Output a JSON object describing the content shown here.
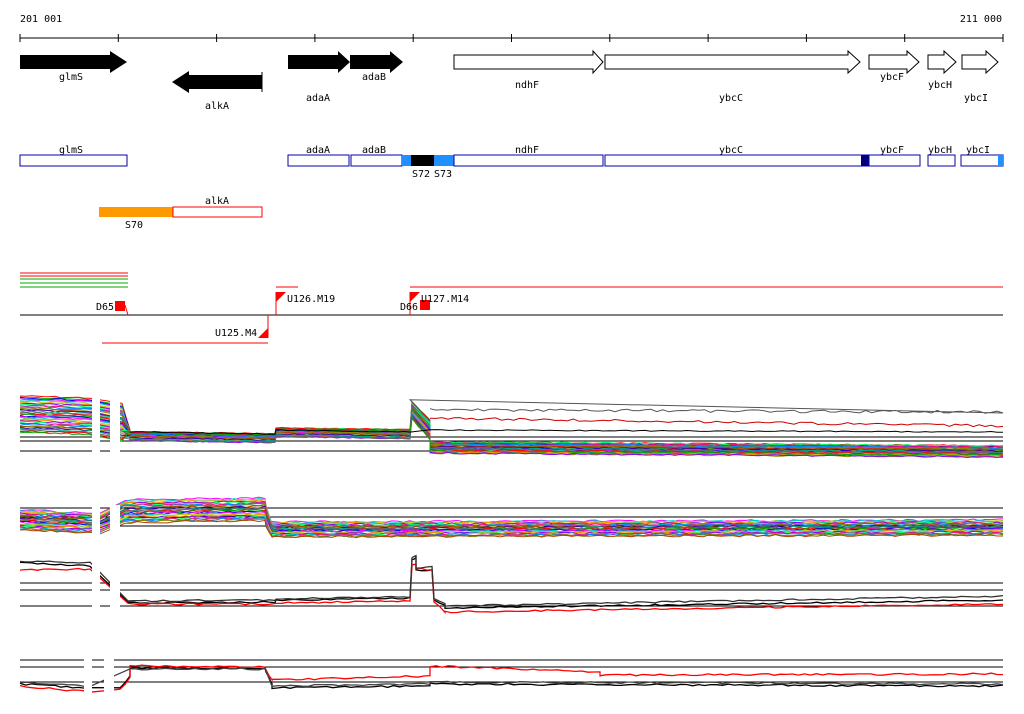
{
  "coords": {
    "start": "201 001",
    "end": "211 000"
  },
  "genes": [
    "glmS",
    "alkA",
    "adaA",
    "adaB",
    "ndhF",
    "ybcC",
    "ybcF",
    "ybcH",
    "ybcI"
  ],
  "segments": [
    "S70",
    "S72",
    "S73"
  ],
  "sites": {
    "d65": "D65",
    "d66": "D66",
    "u125": "U125.M4",
    "u126": "U126.M19",
    "u127": "U127.M14"
  },
  "colors": {
    "gene_fill": "#000000",
    "outline_blue": "#0000aa",
    "dark_blue": "#00007f",
    "light_blue": "#1e90ff",
    "orange": "#ff9900",
    "red": "#ff0000",
    "green": "#00aa00"
  },
  "icons": {
    "arrow": "gene-arrow-icon",
    "flag": "site-flag-icon"
  }
}
